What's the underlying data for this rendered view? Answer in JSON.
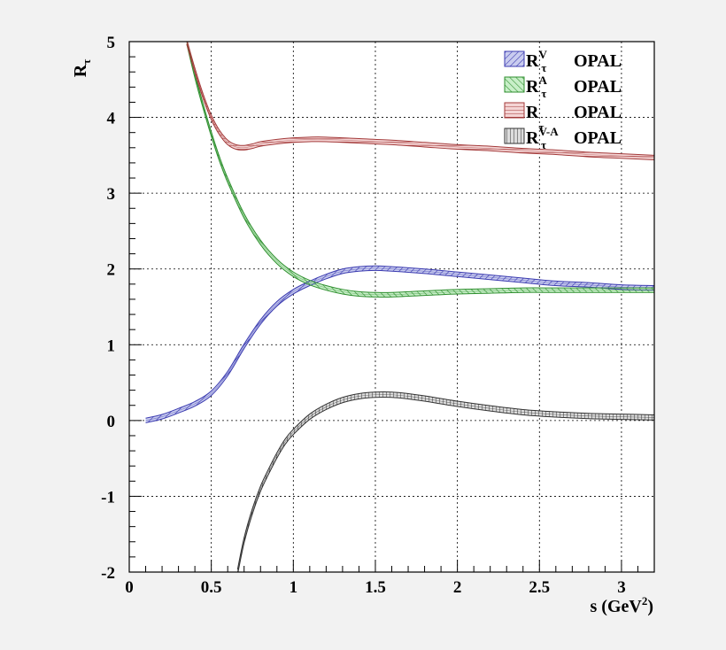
{
  "chart_data": {
    "type": "line",
    "ylabel": "R",
    "ylabel_sub": "τ",
    "xlabel": "s (GeV",
    "xlabel_sup": "2",
    "xlabel_close": ")",
    "xlim": [
      0,
      3.2
    ],
    "ylim": [
      -2,
      5
    ],
    "grid": true,
    "legend_position": "top-right",
    "x_ticks": [
      {
        "value": 0,
        "label": "0"
      },
      {
        "value": 0.5,
        "label": "0.5"
      },
      {
        "value": 1,
        "label": "1"
      },
      {
        "value": 1.5,
        "label": "1.5"
      },
      {
        "value": 2,
        "label": "2"
      },
      {
        "value": 2.5,
        "label": "2.5"
      },
      {
        "value": 3,
        "label": "3"
      }
    ],
    "y_ticks": [
      {
        "value": -2,
        "label": "-2"
      },
      {
        "value": -1,
        "label": "-1"
      },
      {
        "value": 0,
        "label": "0"
      },
      {
        "value": 1,
        "label": "1"
      },
      {
        "value": 2,
        "label": "2"
      },
      {
        "value": 3,
        "label": "3"
      },
      {
        "value": 4,
        "label": "4"
      },
      {
        "value": 5,
        "label": "5"
      }
    ],
    "series": [
      {
        "name": "R",
        "sub": "τ",
        "sup": "V",
        "experiment": "OPAL",
        "color": "#3b3bb0",
        "fill": "#b4b8e6",
        "band": 0.03,
        "x": [
          0.1,
          0.2,
          0.3,
          0.4,
          0.5,
          0.6,
          0.7,
          0.8,
          0.9,
          1.0,
          1.1,
          1.2,
          1.3,
          1.4,
          1.5,
          1.6,
          1.8,
          2.0,
          2.2,
          2.4,
          2.6,
          2.8,
          3.0,
          3.2
        ],
        "y": [
          0.0,
          0.05,
          0.13,
          0.22,
          0.36,
          0.62,
          0.98,
          1.3,
          1.54,
          1.7,
          1.81,
          1.9,
          1.97,
          2.0,
          2.01,
          2.0,
          1.97,
          1.93,
          1.89,
          1.85,
          1.81,
          1.79,
          1.76,
          1.75
        ]
      },
      {
        "name": "R",
        "sub": "τ",
        "sup": "A",
        "experiment": "OPAL",
        "color": "#2f8f2f",
        "fill": "#b3e2b3",
        "band": 0.03,
        "x": [
          0.35,
          0.4,
          0.45,
          0.5,
          0.55,
          0.6,
          0.7,
          0.8,
          0.9,
          1.0,
          1.1,
          1.2,
          1.3,
          1.4,
          1.5,
          1.6,
          1.8,
          2.0,
          2.2,
          2.4,
          2.6,
          2.8,
          3.0,
          3.2
        ],
        "y": [
          5.0,
          4.55,
          4.15,
          3.78,
          3.45,
          3.17,
          2.7,
          2.35,
          2.1,
          1.93,
          1.82,
          1.75,
          1.7,
          1.67,
          1.66,
          1.66,
          1.68,
          1.7,
          1.71,
          1.72,
          1.72,
          1.72,
          1.72,
          1.72
        ]
      },
      {
        "name": "R",
        "sub": "τ",
        "sup": "",
        "experiment": "OPAL",
        "color": "#a33a3a",
        "fill": "#ecc0c0",
        "band": 0.03,
        "x": [
          0.35,
          0.4,
          0.45,
          0.5,
          0.55,
          0.6,
          0.65,
          0.7,
          0.75,
          0.8,
          0.9,
          1.0,
          1.1,
          1.2,
          1.4,
          1.6,
          1.8,
          2.0,
          2.2,
          2.4,
          2.6,
          2.8,
          3.0,
          3.2
        ],
        "y": [
          5.0,
          4.62,
          4.28,
          4.0,
          3.8,
          3.67,
          3.61,
          3.6,
          3.62,
          3.65,
          3.68,
          3.7,
          3.71,
          3.71,
          3.69,
          3.67,
          3.64,
          3.61,
          3.59,
          3.56,
          3.54,
          3.51,
          3.49,
          3.47
        ]
      },
      {
        "name": "R",
        "sub": "τ",
        "sup": "V-A",
        "experiment": "OPAL",
        "color": "#333333",
        "fill": "#cccccc",
        "band": 0.035,
        "x": [
          0.66,
          0.7,
          0.75,
          0.8,
          0.85,
          0.9,
          0.95,
          1.0,
          1.1,
          1.2,
          1.3,
          1.4,
          1.5,
          1.6,
          1.7,
          1.8,
          2.0,
          2.2,
          2.4,
          2.6,
          2.8,
          3.0,
          3.2
        ],
        "y": [
          -2.0,
          -1.58,
          -1.2,
          -0.9,
          -0.67,
          -0.46,
          -0.28,
          -0.15,
          0.05,
          0.18,
          0.27,
          0.32,
          0.34,
          0.34,
          0.32,
          0.29,
          0.22,
          0.16,
          0.11,
          0.08,
          0.06,
          0.05,
          0.04
        ]
      }
    ]
  }
}
